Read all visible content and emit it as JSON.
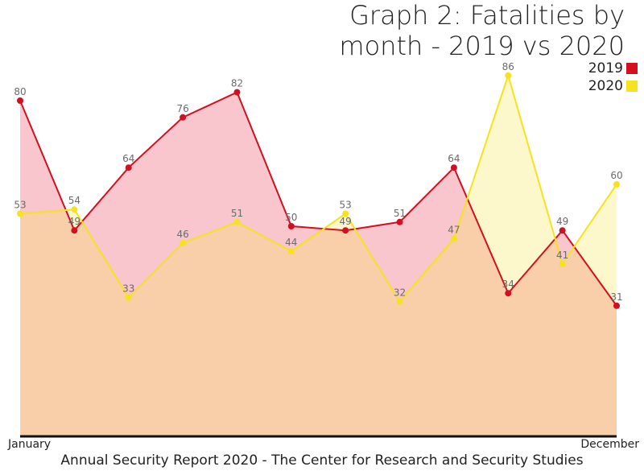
{
  "chart_data": {
    "type": "area",
    "title": "Graph 2: Fatalities by month - 2019 vs 2020",
    "title_lines": [
      "Graph 2: Fatalities by",
      "month - 2019 vs 2020"
    ],
    "x_start_label": "January",
    "x_end_label": "December",
    "ylim": [
      0,
      100
    ],
    "grid": false,
    "legend_position": "top-right",
    "series": [
      {
        "name": "2019",
        "color": "#d40f1f",
        "fill": "#f8c6cc",
        "values": [
          80,
          49,
          64,
          76,
          82,
          50,
          49,
          51,
          64,
          34,
          49,
          31
        ]
      },
      {
        "name": "2020",
        "color": "#f6e21e",
        "fill": "#fcf8cc",
        "values": [
          53,
          54,
          33,
          46,
          51,
          44,
          53,
          32,
          47,
          86,
          41,
          60
        ]
      }
    ]
  },
  "overlap_fill": "#f8cfa8",
  "footer": "Annual Security Report 2020 - The Center for Research and Security Studies"
}
